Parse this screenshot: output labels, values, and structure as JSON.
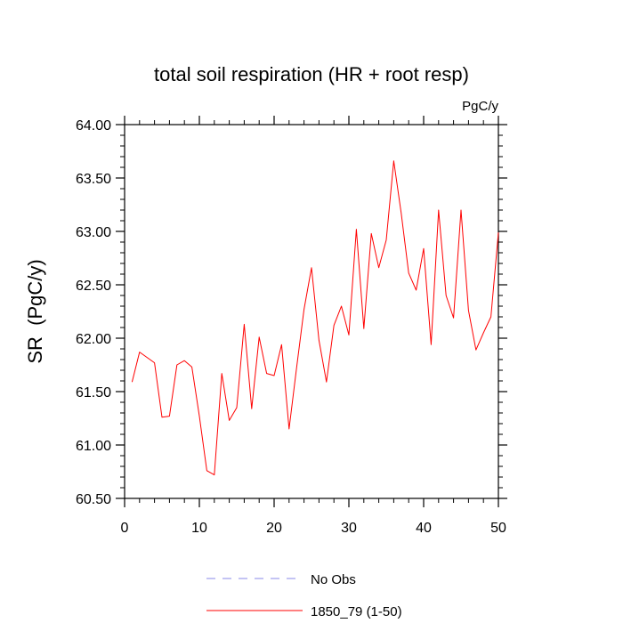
{
  "chart_data": {
    "type": "line",
    "title": "total soil respiration (HR + root resp)",
    "units": "PgC/y",
    "xlabel": "",
    "ylabel": "SR  (PgC/y)",
    "xlim": [
      0,
      50
    ],
    "ylim": [
      60.5,
      64.0
    ],
    "x_ticks": [
      0,
      10,
      20,
      30,
      40,
      50
    ],
    "x_tick_labels": [
      "0",
      "10",
      "20",
      "30",
      "40",
      "50"
    ],
    "y_ticks": [
      60.5,
      61.0,
      61.5,
      62.0,
      62.5,
      63.0,
      63.5,
      64.0
    ],
    "y_tick_labels": [
      "60.50",
      "61.00",
      "61.50",
      "62.00",
      "62.50",
      "63.00",
      "63.50",
      "64.00"
    ],
    "grid": false,
    "legend_placement": "bottom-center",
    "series": [
      {
        "name": "1850_79 (1-50)",
        "color": "#ff0000",
        "style": "solid",
        "x": [
          1,
          2,
          3,
          4,
          5,
          6,
          7,
          8,
          9,
          10,
          11,
          12,
          13,
          14,
          15,
          16,
          17,
          18,
          19,
          20,
          21,
          22,
          23,
          24,
          25,
          26,
          27,
          28,
          29,
          30,
          31,
          32,
          33,
          34,
          35,
          36,
          37,
          38,
          39,
          40,
          41,
          42,
          43,
          44,
          45,
          46,
          47,
          48,
          49,
          50
        ],
        "values": [
          61.59,
          61.87,
          61.82,
          61.77,
          61.26,
          61.27,
          61.75,
          61.79,
          61.73,
          61.27,
          60.76,
          60.72,
          61.67,
          61.23,
          61.35,
          62.13,
          61.34,
          62.01,
          61.67,
          61.65,
          61.94,
          61.15,
          61.72,
          62.27,
          62.66,
          61.98,
          61.59,
          62.12,
          62.3,
          62.03,
          63.02,
          62.09,
          62.98,
          62.66,
          62.92,
          63.66,
          63.17,
          62.61,
          62.45,
          62.84,
          61.94,
          63.2,
          62.4,
          62.19,
          63.2,
          62.26,
          61.89,
          62.05,
          62.2,
          62.99
        ]
      },
      {
        "name": "No Obs",
        "color": "#8a8aea",
        "style": "dashed",
        "x": [],
        "values": []
      }
    ]
  }
}
